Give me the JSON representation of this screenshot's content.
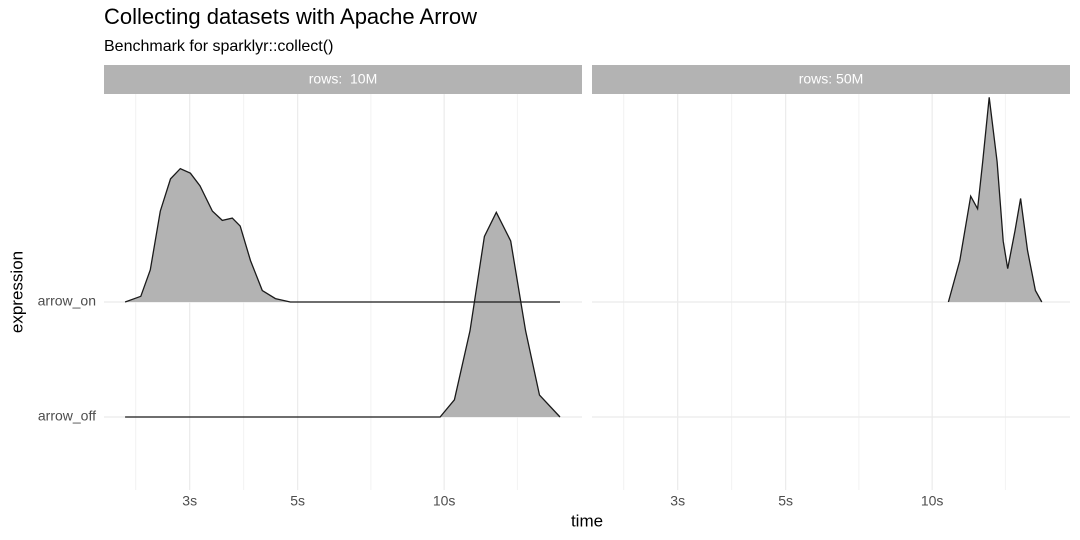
{
  "chart_data": {
    "type": "ridgeline",
    "title": "Collecting datasets with Apache Arrow",
    "subtitle": "Benchmark for sparklyr::collect()",
    "x_label": "time",
    "y_label": "expression",
    "categories": [
      "arrow_on",
      "arrow_off"
    ],
    "log_x": true,
    "grid": true,
    "fill": "#b3b3b3",
    "xlim": [
      2.0,
      19.2
    ],
    "xticks": [
      {
        "value": 3,
        "label": "3s"
      },
      {
        "value": 5,
        "label": "5s"
      },
      {
        "value": 10,
        "label": "10s"
      }
    ],
    "panels": [
      {
        "label": "rows:  10M",
        "series": [
          {
            "x": [
              2.21,
              2.38,
              2.49,
              2.61,
              2.74,
              2.87,
              3.01,
              3.15,
              3.34,
              3.5,
              3.67,
              3.81,
              4.0,
              4.23,
              4.5,
              4.83,
              17.3
            ],
            "values": [
              0,
              0.05,
              0.28,
              0.79,
              1.07,
              1.16,
              1.12,
              1.01,
              0.79,
              0.71,
              0.73,
              0.66,
              0.36,
              0.1,
              0.03,
              0,
              0
            ]
          },
          {
            "x": [
              2.21,
              9.81,
              10.5,
              11.3,
              12.1,
              12.8,
              13.7,
              14.7,
              15.7,
              17.3
            ],
            "values": [
              0,
              0,
              0.15,
              0.75,
              1.57,
              1.78,
              1.53,
              0.75,
              0.19,
              0
            ]
          }
        ]
      },
      {
        "label": "rows: 50M",
        "series": [
          {
            "x": [
              10.8,
              11.4,
              12.0,
              12.4,
              12.7,
              13.1,
              13.6,
              14.0,
              14.3,
              14.8,
              15.2,
              15.7,
              16.3,
              16.8
            ],
            "values": [
              0,
              0.36,
              0.92,
              0.81,
              1.22,
              1.78,
              1.22,
              0.53,
              0.29,
              0.62,
              0.9,
              0.45,
              0.1,
              0
            ]
          },
          {
            "x": [],
            "values": []
          }
        ]
      }
    ]
  }
}
